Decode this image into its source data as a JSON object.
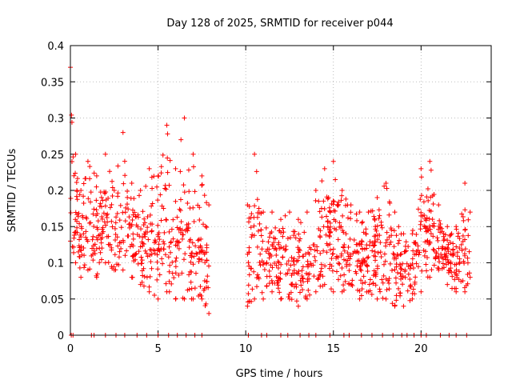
{
  "chart_data": {
    "type": "scatter",
    "title": "Day 128 of 2025, SRMTID for receiver p044",
    "xlabel": "GPS time / hours",
    "ylabel": "SRMTID / TECUs",
    "xlim": [
      0,
      24
    ],
    "ylim": [
      0,
      0.4
    ],
    "xticks": [
      0,
      5,
      10,
      15,
      20
    ],
    "xtick_labels": [
      "0",
      "5",
      "10",
      "15",
      "20"
    ],
    "yticks": [
      0,
      0.05,
      0.1,
      0.15,
      0.2,
      0.25,
      0.3,
      0.35,
      0.4
    ],
    "ytick_labels": [
      "0",
      "0.05",
      "0.1",
      "0.15",
      "0.2",
      "0.25",
      "0.3",
      "0.35",
      "0.4"
    ],
    "grid": true,
    "marker": "+",
    "marker_color": "#ff0000",
    "series": [
      {
        "name": "SRMTID p044",
        "segments": [
          {
            "x_start": 0.0,
            "x_end": 7.9,
            "envelope": [
              [
                0.0,
                0.13,
                0.37
              ],
              [
                0.3,
                0.1,
                0.25
              ],
              [
                0.6,
                0.08,
                0.2
              ],
              [
                1.0,
                0.09,
                0.24
              ],
              [
                1.5,
                0.08,
                0.22
              ],
              [
                2.0,
                0.1,
                0.25
              ],
              [
                2.5,
                0.09,
                0.2
              ],
              [
                3.0,
                0.09,
                0.28
              ],
              [
                3.5,
                0.08,
                0.21
              ],
              [
                4.0,
                0.07,
                0.2
              ],
              [
                4.5,
                0.06,
                0.23
              ],
              [
                5.0,
                0.05,
                0.22
              ],
              [
                5.5,
                0.06,
                0.29
              ],
              [
                6.0,
                0.05,
                0.23
              ],
              [
                6.5,
                0.05,
                0.3
              ],
              [
                7.0,
                0.05,
                0.25
              ],
              [
                7.5,
                0.05,
                0.22
              ],
              [
                7.9,
                0.03,
                0.18
              ]
            ]
          },
          {
            "x_start": 10.1,
            "x_end": 22.8,
            "envelope": [
              [
                10.1,
                0.04,
                0.18
              ],
              [
                10.5,
                0.05,
                0.25
              ],
              [
                11.0,
                0.05,
                0.17
              ],
              [
                11.5,
                0.06,
                0.17
              ],
              [
                12.0,
                0.05,
                0.16
              ],
              [
                12.5,
                0.05,
                0.17
              ],
              [
                13.0,
                0.04,
                0.16
              ],
              [
                13.5,
                0.05,
                0.17
              ],
              [
                14.0,
                0.06,
                0.2
              ],
              [
                14.5,
                0.07,
                0.23
              ],
              [
                15.0,
                0.06,
                0.24
              ],
              [
                15.5,
                0.06,
                0.2
              ],
              [
                16.0,
                0.07,
                0.18
              ],
              [
                16.5,
                0.05,
                0.17
              ],
              [
                17.0,
                0.06,
                0.17
              ],
              [
                17.5,
                0.05,
                0.19
              ],
              [
                18.0,
                0.05,
                0.21
              ],
              [
                18.5,
                0.04,
                0.17
              ],
              [
                19.0,
                0.04,
                0.14
              ],
              [
                19.5,
                0.05,
                0.14
              ],
              [
                20.0,
                0.06,
                0.23
              ],
              [
                20.5,
                0.08,
                0.24
              ],
              [
                21.0,
                0.09,
                0.18
              ],
              [
                21.5,
                0.07,
                0.15
              ],
              [
                22.0,
                0.06,
                0.15
              ],
              [
                22.5,
                0.06,
                0.21
              ],
              [
                22.8,
                0.08,
                0.17
              ]
            ]
          }
        ],
        "zero_values_x": [
          0.05,
          0.15,
          1.2,
          1.35,
          2.0,
          2.6,
          3.1,
          3.8,
          4.35,
          5.0,
          5.6,
          6.1,
          6.6,
          7.1,
          7.5,
          10.15,
          10.9,
          11.2,
          12.0,
          12.4,
          13.1,
          13.6,
          14.0,
          14.8,
          15.6,
          15.9,
          16.6,
          17.2,
          17.8,
          18.4,
          18.9,
          19.2,
          19.6,
          20.0,
          20.3,
          21.1,
          21.6,
          22.0,
          22.6
        ]
      }
    ]
  }
}
